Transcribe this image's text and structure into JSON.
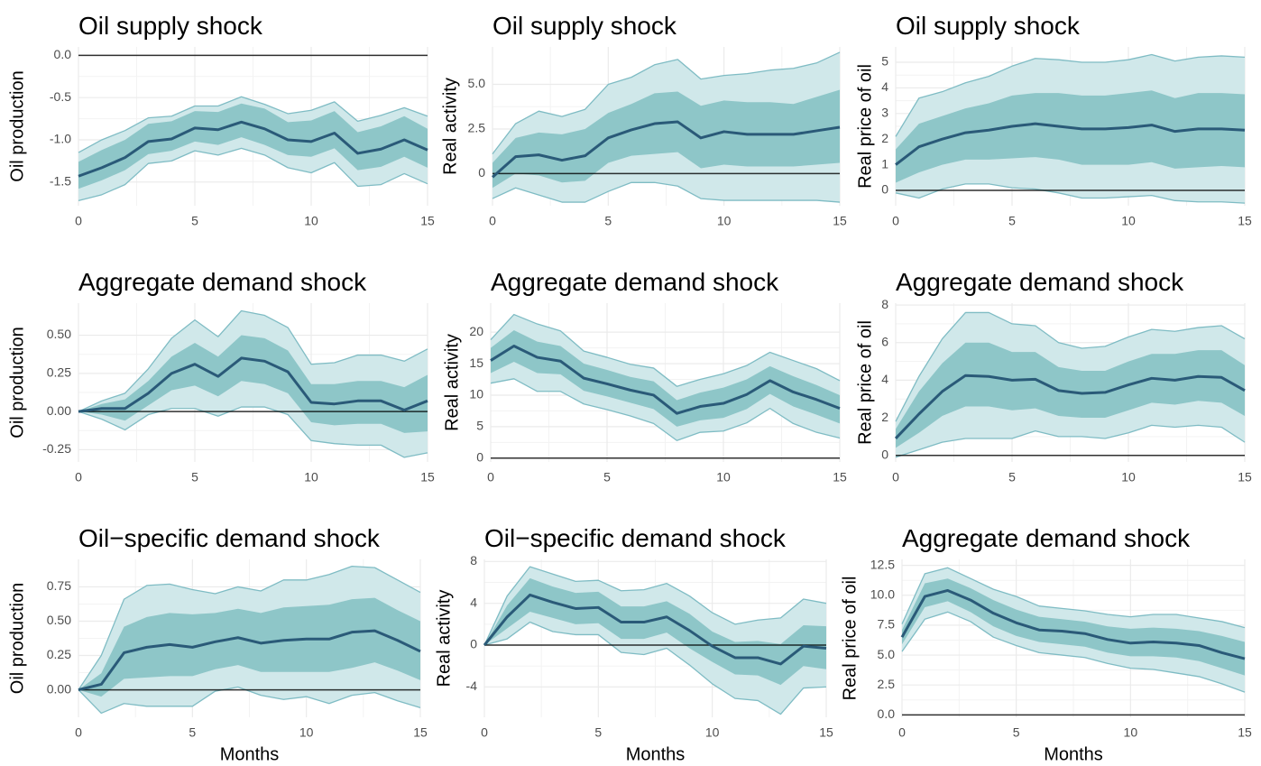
{
  "chart_data": [
    {
      "type": "line",
      "title": "Oil supply shock",
      "ylabel": "Oil production",
      "x": [
        0,
        1,
        2,
        3,
        4,
        5,
        6,
        7,
        8,
        9,
        10,
        11,
        12,
        13,
        14,
        15
      ],
      "xlim": [
        0,
        15
      ],
      "xticks": [
        0,
        5,
        10,
        15
      ],
      "ylim": [
        -1.78,
        0.1
      ],
      "yticks": [
        -1.5,
        {
          "value": -1.0,
          "label": "-1.0"
        },
        -0.5,
        {
          "value": 0,
          "label": "0.0"
        }
      ],
      "hline": 0,
      "grid": true,
      "color": "#2a5a78",
      "inner_color": "#8ec6c8",
      "outer_color": "#d0e8ea",
      "edge_color": "#7fbcc4",
      "values": [
        -1.43,
        -1.33,
        -1.21,
        -1.02,
        -0.99,
        -0.86,
        -0.88,
        -0.79,
        -0.87,
        -1.0,
        -1.02,
        -0.92,
        -1.16,
        -1.11,
        -1.0,
        -1.12
      ],
      "inner_upper": [
        -1.26,
        -1.12,
        -1.0,
        -0.81,
        -0.78,
        -0.66,
        -0.67,
        -0.57,
        -0.63,
        -0.79,
        -0.77,
        -0.66,
        -0.91,
        -0.84,
        -0.72,
        -0.87
      ],
      "inner_lower": [
        -1.58,
        -1.48,
        -1.36,
        -1.17,
        -1.13,
        -1.02,
        -1.06,
        -0.97,
        -1.06,
        -1.18,
        -1.2,
        -1.1,
        -1.36,
        -1.32,
        -1.2,
        -1.33
      ],
      "outer_upper": [
        -1.15,
        -1.0,
        -0.89,
        -0.74,
        -0.72,
        -0.6,
        -0.6,
        -0.49,
        -0.58,
        -0.69,
        -0.65,
        -0.55,
        -0.78,
        -0.71,
        -0.62,
        -0.72
      ],
      "outer_lower": [
        -1.72,
        -1.65,
        -1.53,
        -1.28,
        -1.25,
        -1.13,
        -1.18,
        -1.1,
        -1.18,
        -1.33,
        -1.39,
        -1.27,
        -1.55,
        -1.53,
        -1.4,
        -1.52
      ]
    },
    {
      "type": "line",
      "title": "Oil supply shock",
      "ylabel": "Real activity",
      "x": [
        0,
        1,
        2,
        3,
        4,
        5,
        6,
        7,
        8,
        9,
        10,
        11,
        12,
        13,
        14,
        15
      ],
      "xlim": [
        0,
        15
      ],
      "xticks": [
        0,
        5,
        10,
        15
      ],
      "ylim": [
        -1.8,
        7.1
      ],
      "yticks": [
        0,
        2.5,
        {
          "value": 5,
          "label": "5.0"
        }
      ],
      "hline": 0,
      "grid": true,
      "color": "#2a5a78",
      "inner_color": "#8ec6c8",
      "outer_color": "#d0e8ea",
      "edge_color": "#7fbcc4",
      "values": [
        -0.2,
        0.95,
        1.05,
        0.75,
        1.0,
        2.0,
        2.45,
        2.8,
        2.9,
        2.0,
        2.35,
        2.2,
        2.2,
        2.2,
        2.4,
        2.6
      ],
      "inner_upper": [
        0.6,
        2.0,
        2.3,
        2.2,
        2.5,
        3.4,
        3.9,
        4.5,
        4.6,
        3.8,
        4.1,
        4.0,
        4.0,
        3.9,
        4.3,
        4.7
      ],
      "inner_lower": [
        -0.8,
        0.0,
        -0.1,
        -0.5,
        -0.4,
        0.6,
        1.0,
        1.1,
        1.2,
        0.3,
        0.5,
        0.4,
        0.4,
        0.4,
        0.5,
        0.6
      ],
      "outer_upper": [
        1.1,
        2.8,
        3.5,
        3.2,
        3.6,
        5.0,
        5.4,
        6.1,
        6.4,
        5.3,
        5.5,
        5.6,
        5.8,
        5.9,
        6.2,
        6.8
      ],
      "outer_lower": [
        -1.4,
        -0.8,
        -1.2,
        -1.6,
        -1.6,
        -1.0,
        -0.5,
        -0.5,
        -0.7,
        -1.4,
        -1.5,
        -1.5,
        -1.5,
        -1.5,
        -1.5,
        -1.6
      ]
    },
    {
      "type": "line",
      "title": "Oil supply shock",
      "ylabel": "Real price of oil",
      "x": [
        0,
        1,
        2,
        3,
        4,
        5,
        6,
        7,
        8,
        9,
        10,
        11,
        12,
        13,
        14,
        15
      ],
      "xlim": [
        0,
        15
      ],
      "xticks": [
        0,
        5,
        10,
        15
      ],
      "ylim": [
        -0.6,
        5.6
      ],
      "yticks": [
        0,
        1,
        2,
        3,
        4,
        5
      ],
      "hline": 0,
      "grid": true,
      "color": "#2a5a78",
      "inner_color": "#8ec6c8",
      "outer_color": "#d0e8ea",
      "edge_color": "#7fbcc4",
      "values": [
        1.0,
        1.7,
        2.0,
        2.25,
        2.35,
        2.5,
        2.6,
        2.5,
        2.4,
        2.4,
        2.45,
        2.55,
        2.3,
        2.4,
        2.4,
        2.35
      ],
      "inner_upper": [
        1.6,
        2.6,
        2.9,
        3.2,
        3.4,
        3.7,
        3.8,
        3.8,
        3.7,
        3.7,
        3.8,
        3.9,
        3.6,
        3.8,
        3.8,
        3.75
      ],
      "inner_lower": [
        0.3,
        0.7,
        1.0,
        1.2,
        1.2,
        1.25,
        1.3,
        1.2,
        1.0,
        1.0,
        1.0,
        1.1,
        0.85,
        0.9,
        0.95,
        0.9
      ],
      "outer_upper": [
        2.1,
        3.6,
        3.85,
        4.2,
        4.45,
        4.85,
        5.15,
        5.1,
        5.0,
        5.0,
        5.1,
        5.3,
        5.05,
        5.2,
        5.25,
        5.2
      ],
      "outer_lower": [
        -0.1,
        -0.3,
        0.05,
        0.25,
        0.25,
        0.1,
        0.05,
        -0.1,
        -0.3,
        -0.3,
        -0.25,
        -0.2,
        -0.4,
        -0.45,
        -0.45,
        -0.5
      ]
    },
    {
      "type": "line",
      "title": "Aggregate demand shock",
      "ylabel": "Oil production",
      "x": [
        0,
        1,
        2,
        3,
        4,
        5,
        6,
        7,
        8,
        9,
        10,
        11,
        12,
        13,
        14,
        15
      ],
      "xlim": [
        0,
        15
      ],
      "xticks": [
        0,
        5,
        10,
        15
      ],
      "ylim": [
        -0.33,
        0.71
      ],
      "yticks": [
        -0.25,
        {
          "value": 0,
          "label": "0.00"
        },
        0.25,
        {
          "value": 0.5,
          "label": "0.50"
        }
      ],
      "hline": 0,
      "grid": true,
      "color": "#2a5a78",
      "inner_color": "#8ec6c8",
      "outer_color": "#d0e8ea",
      "edge_color": "#7fbcc4",
      "values": [
        0,
        0.02,
        0.02,
        0.12,
        0.25,
        0.31,
        0.23,
        0.35,
        0.33,
        0.26,
        0.06,
        0.05,
        0.07,
        0.07,
        0.01,
        0.07
      ],
      "inner_upper": [
        0,
        0.05,
        0.08,
        0.2,
        0.36,
        0.45,
        0.36,
        0.5,
        0.48,
        0.4,
        0.18,
        0.18,
        0.2,
        0.2,
        0.16,
        0.24
      ],
      "inner_lower": [
        0,
        -0.02,
        -0.06,
        0.04,
        0.14,
        0.17,
        0.1,
        0.2,
        0.18,
        0.12,
        -0.07,
        -0.09,
        -0.08,
        -0.08,
        -0.14,
        -0.13
      ],
      "outer_upper": [
        0,
        0.07,
        0.12,
        0.28,
        0.48,
        0.6,
        0.49,
        0.66,
        0.63,
        0.55,
        0.31,
        0.32,
        0.37,
        0.37,
        0.33,
        0.41
      ],
      "outer_lower": [
        0,
        -0.05,
        -0.12,
        -0.02,
        0.02,
        0.02,
        -0.03,
        0.03,
        0.03,
        -0.02,
        -0.19,
        -0.21,
        -0.22,
        -0.22,
        -0.3,
        -0.27
      ]
    },
    {
      "type": "line",
      "title": "Aggregate demand shock",
      "ylabel": "Real activity",
      "x": [
        0,
        1,
        2,
        3,
        4,
        5,
        6,
        7,
        8,
        9,
        10,
        11,
        12,
        13,
        14,
        15
      ],
      "xlim": [
        0,
        15
      ],
      "xticks": [
        0,
        5,
        10,
        15
      ],
      "ylim": [
        -0.6,
        24.6
      ],
      "yticks": [
        0,
        5,
        10,
        15,
        20
      ],
      "hline": 0,
      "grid": true,
      "color": "#2a5a78",
      "inner_color": "#8ec6c8",
      "outer_color": "#d0e8ea",
      "edge_color": "#7fbcc4",
      "values": [
        15.5,
        17.8,
        16.0,
        15.4,
        12.7,
        11.8,
        10.8,
        10.0,
        7.1,
        8.2,
        8.7,
        10.1,
        12.3,
        10.5,
        9.3,
        7.9
      ],
      "inner_upper": [
        17.5,
        20.3,
        18.5,
        17.8,
        15.0,
        14.0,
        12.9,
        12.2,
        9.2,
        10.4,
        11.2,
        12.5,
        14.6,
        13.0,
        11.6,
        10.0
      ],
      "inner_lower": [
        13.5,
        15.3,
        13.5,
        13.3,
        10.7,
        9.8,
        8.8,
        7.8,
        5.0,
        6.0,
        6.4,
        7.8,
        10.2,
        8.2,
        6.9,
        5.5
      ],
      "outer_upper": [
        18.8,
        22.8,
        21.3,
        20.2,
        17.0,
        16.0,
        14.9,
        14.3,
        11.4,
        12.5,
        13.4,
        14.7,
        16.8,
        15.5,
        14.2,
        12.3
      ],
      "outer_lower": [
        11.9,
        12.6,
        10.6,
        10.6,
        8.6,
        7.7,
        6.7,
        5.5,
        2.8,
        4.1,
        4.3,
        5.6,
        7.9,
        5.5,
        4.1,
        3.2
      ]
    },
    {
      "type": "line",
      "title": "Aggregate demand shock",
      "ylabel": "Real price of oil",
      "x": [
        0,
        1,
        2,
        3,
        4,
        5,
        6,
        7,
        8,
        9,
        10,
        11,
        12,
        13,
        14,
        15
      ],
      "xlim": [
        0,
        15
      ],
      "xticks": [
        0,
        5,
        10,
        15
      ],
      "ylim": [
        -0.35,
        8.1
      ],
      "yticks": [
        0,
        2,
        4,
        6,
        8
      ],
      "hline": 0,
      "grid": true,
      "color": "#2a5a78",
      "inner_color": "#8ec6c8",
      "outer_color": "#d0e8ea",
      "edge_color": "#7fbcc4",
      "values": [
        0.9,
        2.2,
        3.4,
        4.25,
        4.2,
        4.0,
        4.05,
        3.45,
        3.3,
        3.35,
        3.75,
        4.1,
        4.0,
        4.2,
        4.15,
        3.45
      ],
      "inner_upper": [
        1.4,
        3.4,
        4.9,
        6.0,
        6.0,
        5.5,
        5.5,
        4.7,
        4.5,
        4.5,
        5.0,
        5.4,
        5.4,
        5.6,
        5.6,
        4.8
      ],
      "inner_lower": [
        0.4,
        1.2,
        2.1,
        2.6,
        2.6,
        2.4,
        2.5,
        2.1,
        2.0,
        2.0,
        2.4,
        2.8,
        2.7,
        2.9,
        2.8,
        2.1
      ],
      "outer_upper": [
        1.8,
        4.2,
        6.2,
        7.6,
        7.6,
        7.0,
        6.9,
        6.0,
        5.7,
        5.8,
        6.3,
        6.7,
        6.6,
        6.8,
        6.9,
        6.2
      ],
      "outer_lower": [
        -0.1,
        0.3,
        0.7,
        0.9,
        0.9,
        0.9,
        1.3,
        1.0,
        1.0,
        0.9,
        1.2,
        1.6,
        1.5,
        1.6,
        1.5,
        0.7
      ]
    },
    {
      "type": "line",
      "title": "Oil−specific demand shock",
      "ylabel": "Oil production",
      "xlabel": "Months",
      "x": [
        0,
        1,
        2,
        3,
        4,
        5,
        6,
        7,
        8,
        9,
        10,
        11,
        12,
        13,
        14,
        15
      ],
      "xlim": [
        0,
        15
      ],
      "xticks": [
        0,
        5,
        10,
        15
      ],
      "ylim": [
        -0.2,
        0.95
      ],
      "yticks": [
        {
          "value": 0,
          "label": "0.00"
        },
        0.25,
        {
          "value": 0.5,
          "label": "0.50"
        },
        0.75
      ],
      "hline": 0,
      "grid": true,
      "color": "#2a5a78",
      "inner_color": "#8ec6c8",
      "outer_color": "#d0e8ea",
      "edge_color": "#7fbcc4",
      "values": [
        0,
        0.04,
        0.27,
        0.31,
        0.33,
        0.31,
        0.35,
        0.38,
        0.34,
        0.36,
        0.37,
        0.37,
        0.42,
        0.43,
        0.36,
        0.28
      ],
      "inner_upper": [
        0,
        0.12,
        0.46,
        0.53,
        0.56,
        0.55,
        0.56,
        0.59,
        0.56,
        0.6,
        0.61,
        0.62,
        0.66,
        0.67,
        0.58,
        0.5
      ],
      "inner_lower": [
        0,
        -0.05,
        0.08,
        0.09,
        0.1,
        0.1,
        0.15,
        0.18,
        0.13,
        0.13,
        0.13,
        0.13,
        0.16,
        0.2,
        0.14,
        0.07
      ],
      "outer_upper": [
        0,
        0.25,
        0.66,
        0.76,
        0.77,
        0.73,
        0.7,
        0.75,
        0.72,
        0.8,
        0.8,
        0.84,
        0.9,
        0.89,
        0.8,
        0.71
      ],
      "outer_lower": [
        0,
        -0.17,
        -0.1,
        -0.12,
        -0.12,
        -0.12,
        -0.01,
        0.02,
        -0.04,
        -0.07,
        -0.05,
        -0.1,
        -0.04,
        -0.02,
        -0.08,
        -0.13
      ]
    },
    {
      "type": "line",
      "title": "Oil−specific demand shock",
      "ylabel": "Real activity",
      "xlabel": "Months",
      "x": [
        0,
        1,
        2,
        3,
        4,
        5,
        6,
        7,
        8,
        9,
        10,
        11,
        12,
        13,
        14,
        15
      ],
      "xlim": [
        0,
        15
      ],
      "xticks": [
        0,
        5,
        10,
        15
      ],
      "ylim": [
        -6.9,
        8.2
      ],
      "yticks": [
        -4,
        0,
        4,
        8
      ],
      "hline": 0,
      "grid": true,
      "color": "#2a5a78",
      "inner_color": "#8ec6c8",
      "outer_color": "#d0e8ea",
      "edge_color": "#7fbcc4",
      "values": [
        0,
        2.7,
        4.8,
        4.1,
        3.5,
        3.6,
        2.2,
        2.2,
        2.7,
        1.4,
        -0.1,
        -1.2,
        -1.2,
        -1.8,
        -0.1,
        -0.3
      ],
      "inner_upper": [
        0,
        3.8,
        6.4,
        5.6,
        5.0,
        5.1,
        3.7,
        3.7,
        4.2,
        3.0,
        1.3,
        0.3,
        0.4,
        0.1,
        1.9,
        1.8
      ],
      "inner_lower": [
        0,
        1.6,
        3.2,
        2.6,
        2.0,
        2.1,
        0.6,
        0.6,
        1.2,
        -0.3,
        -1.6,
        -2.8,
        -2.9,
        -3.8,
        -2.0,
        -2.3
      ],
      "outer_upper": [
        0,
        4.7,
        7.5,
        6.8,
        6.1,
        6.2,
        5.2,
        5.3,
        5.9,
        4.7,
        3.1,
        2.0,
        2.4,
        2.6,
        4.4,
        4.0
      ],
      "outer_lower": [
        0,
        0.6,
        2.2,
        1.3,
        1.0,
        1.0,
        -0.7,
        -0.9,
        -0.3,
        -1.9,
        -3.7,
        -5.1,
        -5.3,
        -6.6,
        -4.1,
        -4.0
      ]
    },
    {
      "type": "line",
      "title": "Aggregate demand shock",
      "ylabel": "Real price of oil",
      "xlabel": "Months",
      "x": [
        0,
        1,
        2,
        3,
        4,
        5,
        6,
        7,
        8,
        9,
        10,
        11,
        12,
        13,
        14,
        15
      ],
      "xlim": [
        0,
        15
      ],
      "xticks": [
        0,
        5,
        10,
        15
      ],
      "ylim": [
        -0.2,
        13
      ],
      "yticks": [
        {
          "value": 0,
          "label": "0.0"
        },
        2.5,
        {
          "value": 5,
          "label": "5.0"
        },
        7.5,
        {
          "value": 10,
          "label": "10.0"
        },
        12.5
      ],
      "hline": 0,
      "grid": true,
      "color": "#2a5a78",
      "inner_color": "#8ec6c8",
      "outer_color": "#d0e8ea",
      "edge_color": "#7fbcc4",
      "values": [
        6.5,
        9.9,
        10.4,
        9.6,
        8.5,
        7.7,
        7.1,
        7.0,
        6.8,
        6.3,
        6.0,
        6.1,
        6.0,
        5.8,
        5.2,
        4.7
      ],
      "inner_upper": [
        7.1,
        11.0,
        11.4,
        10.6,
        9.6,
        8.8,
        8.2,
        8.0,
        7.8,
        7.4,
        7.2,
        7.3,
        7.2,
        7.0,
        6.6,
        6.1
      ],
      "inner_lower": [
        5.9,
        9.0,
        9.5,
        8.6,
        7.4,
        6.6,
        6.1,
        5.9,
        5.7,
        5.2,
        4.9,
        4.9,
        4.8,
        4.5,
        3.9,
        3.3
      ],
      "outer_upper": [
        7.6,
        11.8,
        12.3,
        11.4,
        10.5,
        9.9,
        9.1,
        8.9,
        8.7,
        8.4,
        8.2,
        8.4,
        8.4,
        8.1,
        7.8,
        7.3
      ],
      "outer_lower": [
        5.3,
        8.0,
        8.6,
        7.8,
        6.5,
        5.8,
        5.2,
        5.0,
        4.8,
        4.3,
        3.9,
        3.8,
        3.5,
        3.2,
        2.6,
        1.9
      ]
    }
  ]
}
